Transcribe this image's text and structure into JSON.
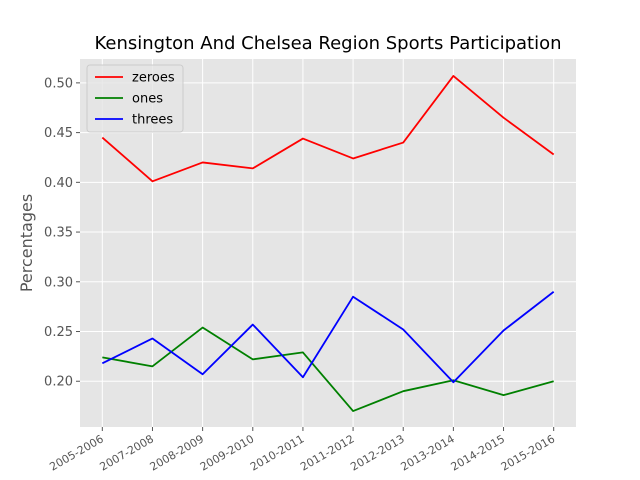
{
  "chart_data": {
    "type": "line",
    "title": "Kensington And Chelsea Region Sports Participation",
    "xlabel": "",
    "ylabel": "Percentages",
    "categories": [
      "2005-2006",
      "2007-2008",
      "2008-2009",
      "2009-2010",
      "2010-2011",
      "2011-2012",
      "2012-2013",
      "2013-2014",
      "2014-2015",
      "2015-2016"
    ],
    "ylim": [
      0.154,
      0.524
    ],
    "yticks": [
      "0.20",
      "0.25",
      "0.30",
      "0.35",
      "0.40",
      "0.45",
      "0.50"
    ],
    "grid": true,
    "legend_position": "top-left",
    "series": [
      {
        "name": "zeroes",
        "color": "#ff0000",
        "values": [
          0.445,
          0.401,
          0.42,
          0.414,
          0.444,
          0.424,
          0.44,
          0.507,
          0.465,
          0.428
        ]
      },
      {
        "name": "ones",
        "color": "#008000",
        "values": [
          0.224,
          0.215,
          0.254,
          0.222,
          0.229,
          0.17,
          0.19,
          0.201,
          0.186,
          0.2
        ]
      },
      {
        "name": "threes",
        "color": "#0000ff",
        "values": [
          0.218,
          0.243,
          0.207,
          0.257,
          0.204,
          0.285,
          0.252,
          0.199,
          0.251,
          0.29
        ]
      }
    ],
    "background_color": "#e5e5e5",
    "grid_color": "#ffffff"
  }
}
